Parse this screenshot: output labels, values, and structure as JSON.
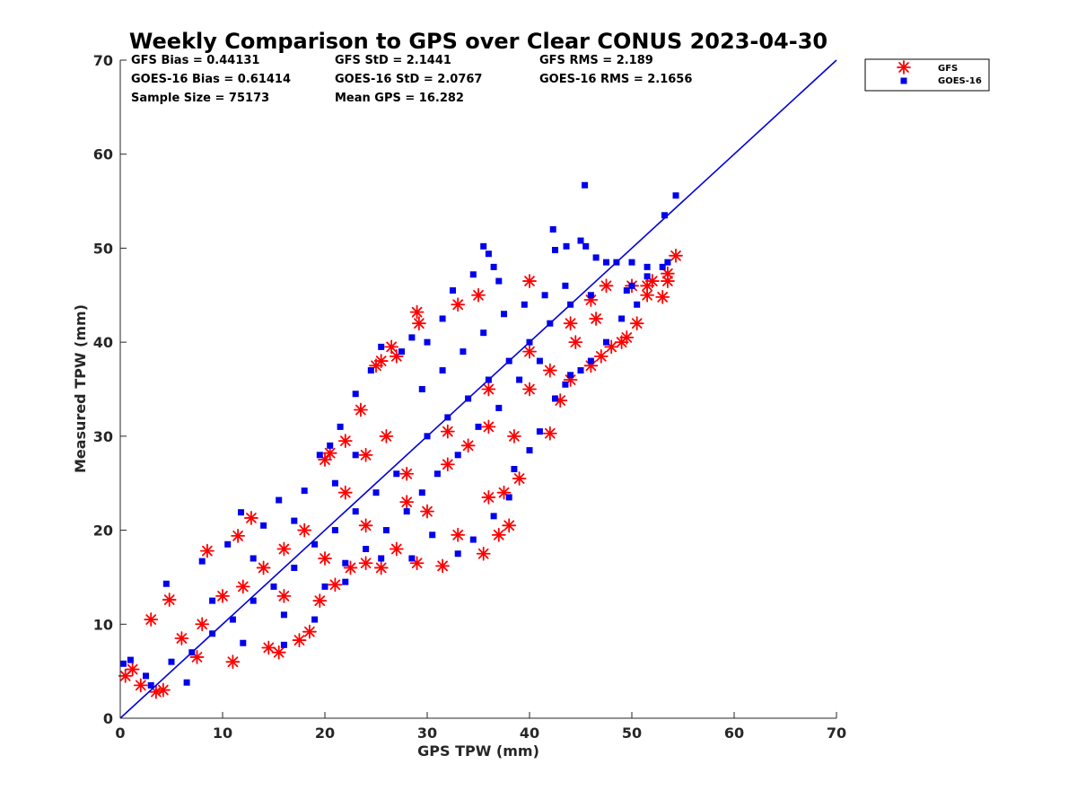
{
  "chart_data": {
    "type": "scatter",
    "title": "Weekly Comparison to GPS over Clear CONUS 2023-04-30",
    "xlabel": "GPS TPW (mm)",
    "ylabel": "Measured TPW (mm)",
    "xlim": [
      0,
      70
    ],
    "ylim": [
      0,
      70
    ],
    "xticks": [
      "0",
      "10",
      "20",
      "30",
      "40",
      "50",
      "60",
      "70"
    ],
    "yticks": [
      "0",
      "10",
      "20",
      "30",
      "40",
      "50",
      "60",
      "70"
    ],
    "grid": false,
    "legend_position": "outside top-right",
    "reference_line": {
      "from": [
        0,
        0
      ],
      "to": [
        70,
        70
      ],
      "color": "#0000dd"
    },
    "stats": [
      "GFS Bias = 0.44131",
      "GFS StD = 2.1441",
      "GFS RMS = 2.189",
      "GOES-16 Bias = 0.61414",
      "GOES-16 StD = 2.0767",
      "GOES-16 RMS = 2.1656",
      "Sample Size = 75173",
      "Mean GPS = 16.282"
    ],
    "series": [
      {
        "name": "GFS",
        "marker": "asterisk",
        "color": "#ff0000",
        "points": [
          [
            0.5,
            4.5
          ],
          [
            1.2,
            5.2
          ],
          [
            2.0,
            3.5
          ],
          [
            3.5,
            2.8
          ],
          [
            4.2,
            3.0
          ],
          [
            4.8,
            12.6
          ],
          [
            3.0,
            10.5
          ],
          [
            8.5,
            17.8
          ],
          [
            11.5,
            19.4
          ],
          [
            12.8,
            21.3
          ],
          [
            7.5,
            6.5
          ],
          [
            11.0,
            6.0
          ],
          [
            14.5,
            7.5
          ],
          [
            15.5,
            7.0
          ],
          [
            17.5,
            8.3
          ],
          [
            18.5,
            9.2
          ],
          [
            19.5,
            12.5
          ],
          [
            21.0,
            14.2
          ],
          [
            22.5,
            16.0
          ],
          [
            24.0,
            16.5
          ],
          [
            25.5,
            16.0
          ],
          [
            27.0,
            18.0
          ],
          [
            29.0,
            16.5
          ],
          [
            31.5,
            16.2
          ],
          [
            33.0,
            19.5
          ],
          [
            35.5,
            17.5
          ],
          [
            37.0,
            19.5
          ],
          [
            38.0,
            20.5
          ],
          [
            36.0,
            23.5
          ],
          [
            37.5,
            24.0
          ],
          [
            39.0,
            25.5
          ],
          [
            38.5,
            30.0
          ],
          [
            42.0,
            30.3
          ],
          [
            20.0,
            27.5
          ],
          [
            20.5,
            28.2
          ],
          [
            22.0,
            29.5
          ],
          [
            23.5,
            32.8
          ],
          [
            25.0,
            37.5
          ],
          [
            25.5,
            38.0
          ],
          [
            26.5,
            39.5
          ],
          [
            27.0,
            38.5
          ],
          [
            29.0,
            43.2
          ],
          [
            29.2,
            42.0
          ],
          [
            33.0,
            44.0
          ],
          [
            35.0,
            45.0
          ],
          [
            40.0,
            46.5
          ],
          [
            43.0,
            33.8
          ],
          [
            44.0,
            36.0
          ],
          [
            46.0,
            37.5
          ],
          [
            47.0,
            38.5
          ],
          [
            48.0,
            39.5
          ],
          [
            49.0,
            40.0
          ],
          [
            49.5,
            40.5
          ],
          [
            50.5,
            42.0
          ],
          [
            50.0,
            46.0
          ],
          [
            51.5,
            46.0
          ],
          [
            51.5,
            45.0
          ],
          [
            52.0,
            46.5
          ],
          [
            53.0,
            44.8
          ],
          [
            53.5,
            46.5
          ],
          [
            53.5,
            47.3
          ],
          [
            54.3,
            49.2
          ],
          [
            46.5,
            42.5
          ],
          [
            44.5,
            40.0
          ],
          [
            47.5,
            46.0
          ],
          [
            30.0,
            22.0
          ],
          [
            28.0,
            23.0
          ],
          [
            32.0,
            27.0
          ],
          [
            34.0,
            29.0
          ],
          [
            36.0,
            31.0
          ],
          [
            40.0,
            35.0
          ],
          [
            42.0,
            37.0
          ],
          [
            26.0,
            30.0
          ],
          [
            24.0,
            28.0
          ],
          [
            22.0,
            24.0
          ],
          [
            18.0,
            20.0
          ],
          [
            16.0,
            18.0
          ],
          [
            14.0,
            16.0
          ],
          [
            10.0,
            13.0
          ],
          [
            6.0,
            8.5
          ],
          [
            8.0,
            10.0
          ],
          [
            12.0,
            14.0
          ],
          [
            16.0,
            13.0
          ],
          [
            20.0,
            17.0
          ],
          [
            24.0,
            20.5
          ],
          [
            28.0,
            26.0
          ],
          [
            32.0,
            30.5
          ],
          [
            36.0,
            35.0
          ],
          [
            40.0,
            39.0
          ],
          [
            44.0,
            42.0
          ],
          [
            46.0,
            44.5
          ]
        ]
      },
      {
        "name": "GOES-16",
        "marker": "square",
        "color": "#0000ee",
        "points": [
          [
            0.3,
            5.8
          ],
          [
            1.0,
            6.2
          ],
          [
            2.5,
            4.5
          ],
          [
            3.0,
            3.5
          ],
          [
            4.5,
            14.3
          ],
          [
            6.5,
            3.8
          ],
          [
            8.0,
            16.7
          ],
          [
            11.8,
            21.9
          ],
          [
            15.5,
            23.2
          ],
          [
            18.0,
            24.2
          ],
          [
            14.0,
            20.5
          ],
          [
            10.5,
            18.5
          ],
          [
            16.0,
            7.8
          ],
          [
            19.0,
            10.5
          ],
          [
            22.0,
            14.5
          ],
          [
            25.5,
            17.0
          ],
          [
            28.5,
            17.0
          ],
          [
            30.5,
            19.5
          ],
          [
            33.0,
            17.5
          ],
          [
            34.5,
            19.0
          ],
          [
            36.5,
            21.5
          ],
          [
            38.0,
            23.5
          ],
          [
            38.5,
            26.5
          ],
          [
            40.0,
            28.5
          ],
          [
            41.0,
            30.5
          ],
          [
            42.5,
            34.0
          ],
          [
            43.5,
            35.5
          ],
          [
            44.0,
            36.5
          ],
          [
            45.0,
            37.0
          ],
          [
            46.0,
            38.0
          ],
          [
            47.5,
            40.0
          ],
          [
            49.0,
            42.5
          ],
          [
            50.0,
            46.0
          ],
          [
            50.0,
            48.5
          ],
          [
            51.5,
            48.0
          ],
          [
            51.5,
            47.0
          ],
          [
            53.0,
            48.0
          ],
          [
            53.5,
            48.5
          ],
          [
            53.2,
            53.5
          ],
          [
            54.3,
            55.6
          ],
          [
            45.4,
            56.7
          ],
          [
            42.3,
            52.0
          ],
          [
            42.5,
            49.8
          ],
          [
            45.0,
            50.8
          ],
          [
            43.6,
            50.2
          ],
          [
            35.5,
            50.2
          ],
          [
            36.0,
            49.4
          ],
          [
            36.5,
            48.0
          ],
          [
            37.0,
            46.5
          ],
          [
            34.5,
            47.2
          ],
          [
            32.5,
            45.5
          ],
          [
            31.5,
            42.5
          ],
          [
            30.0,
            40.0
          ],
          [
            28.5,
            40.5
          ],
          [
            27.5,
            39.0
          ],
          [
            25.5,
            39.5
          ],
          [
            24.5,
            37.0
          ],
          [
            23.0,
            34.5
          ],
          [
            21.5,
            31.0
          ],
          [
            20.5,
            29.0
          ],
          [
            19.5,
            28.0
          ],
          [
            45.5,
            50.2
          ],
          [
            46.5,
            49.0
          ],
          [
            47.5,
            48.5
          ],
          [
            48.5,
            48.5
          ],
          [
            49.5,
            45.5
          ],
          [
            50.5,
            44.0
          ],
          [
            29.5,
            24.0
          ],
          [
            31.0,
            26.0
          ],
          [
            33.0,
            28.0
          ],
          [
            35.0,
            31.0
          ],
          [
            37.0,
            33.0
          ],
          [
            39.0,
            36.0
          ],
          [
            41.0,
            38.0
          ],
          [
            27.0,
            26.0
          ],
          [
            25.0,
            24.0
          ],
          [
            23.0,
            22.0
          ],
          [
            21.0,
            20.0
          ],
          [
            19.0,
            18.5
          ],
          [
            17.0,
            16.0
          ],
          [
            15.0,
            14.0
          ],
          [
            13.0,
            12.5
          ],
          [
            11.0,
            10.5
          ],
          [
            9.0,
            9.0
          ],
          [
            7.0,
            7.0
          ],
          [
            5.0,
            6.0
          ],
          [
            29.5,
            35.0
          ],
          [
            31.5,
            37.0
          ],
          [
            33.5,
            39.0
          ],
          [
            35.5,
            41.0
          ],
          [
            37.5,
            43.0
          ],
          [
            39.5,
            44.0
          ],
          [
            41.5,
            45.0
          ],
          [
            43.5,
            46.0
          ],
          [
            23.0,
            28.0
          ],
          [
            21.0,
            25.0
          ],
          [
            17.0,
            21.0
          ],
          [
            13.0,
            17.0
          ],
          [
            9.0,
            12.5
          ],
          [
            24.0,
            18.0
          ],
          [
            26.0,
            20.0
          ],
          [
            28.0,
            22.0
          ],
          [
            16.0,
            11.0
          ],
          [
            12.0,
            8.0
          ],
          [
            20.0,
            14.0
          ],
          [
            22.0,
            16.5
          ],
          [
            30.0,
            30.0
          ],
          [
            32.0,
            32.0
          ],
          [
            34.0,
            34.0
          ],
          [
            36.0,
            36.0
          ],
          [
            38.0,
            38.0
          ],
          [
            40.0,
            40.0
          ],
          [
            42.0,
            42.0
          ],
          [
            44.0,
            44.0
          ],
          [
            46.0,
            45.0
          ]
        ]
      }
    ]
  }
}
